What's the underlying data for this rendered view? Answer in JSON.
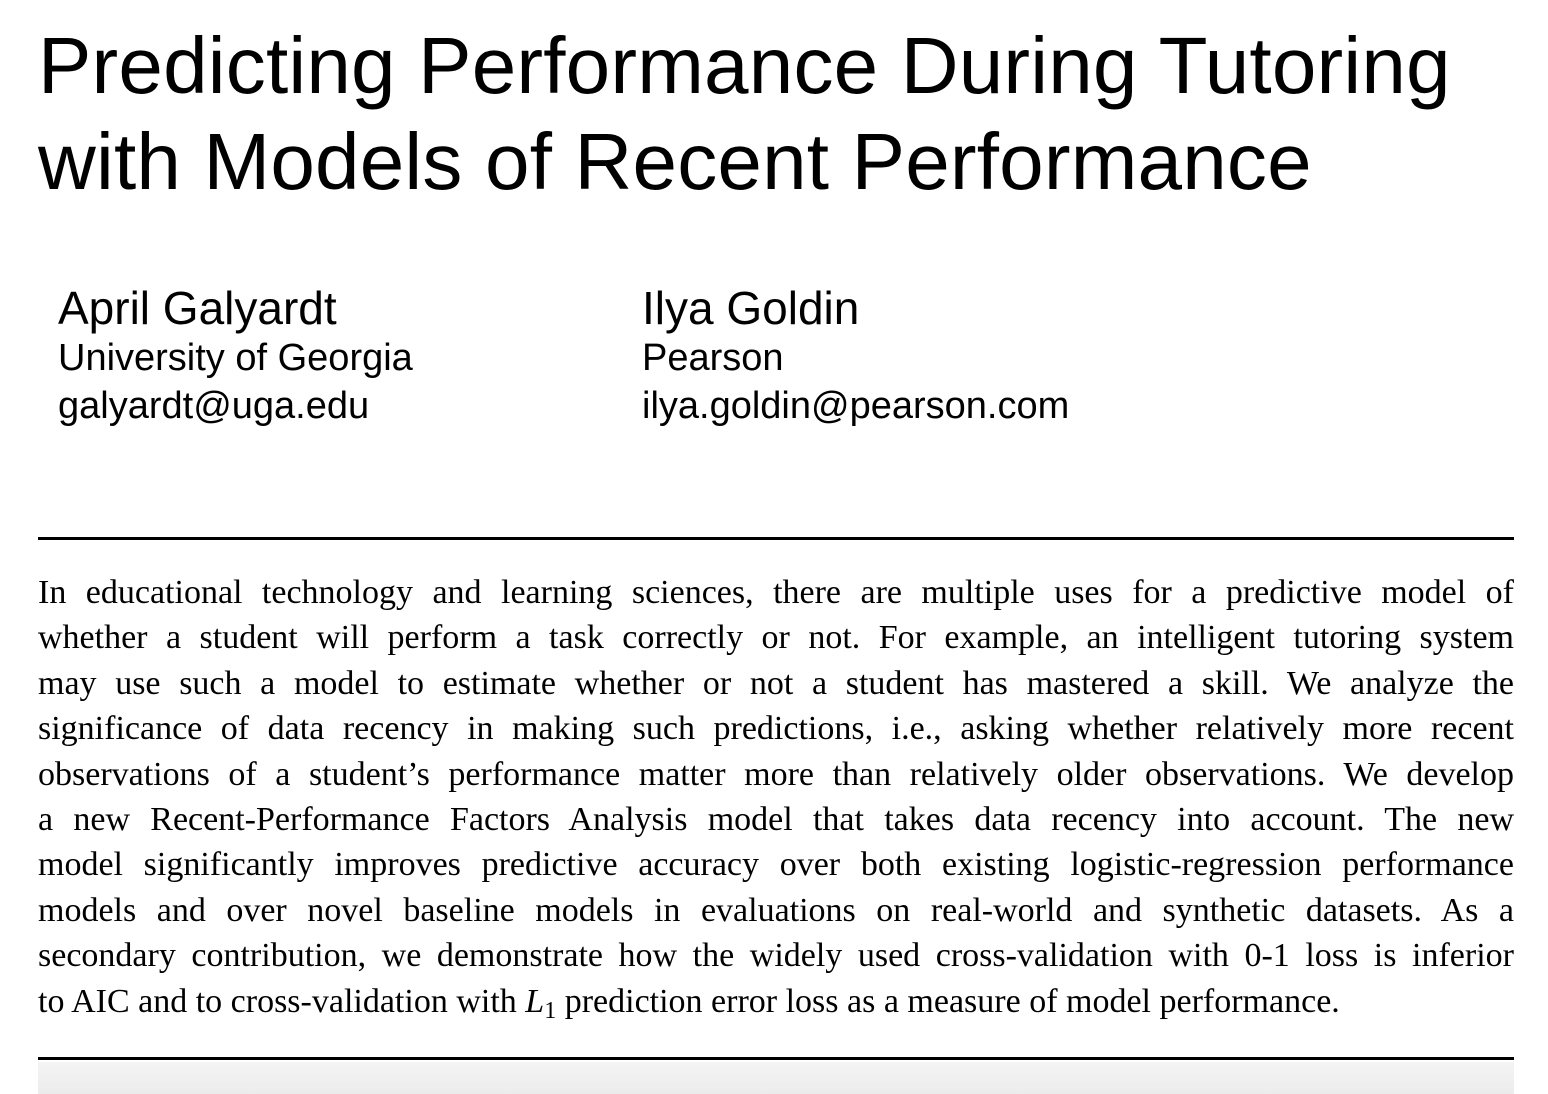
{
  "paper": {
    "title_lines": [
      "Predicting Performance During Tutoring",
      "with Models of Recent Performance"
    ],
    "authors": [
      {
        "name": "April Galyardt",
        "affiliation": "University of Georgia",
        "email": "galyardt@uga.edu"
      },
      {
        "name": "Ilya Goldin",
        "affiliation": "Pearson",
        "email": "ilya.goldin@pearson.com"
      }
    ],
    "abstract_lines": [
      "In educational technology and learning sciences, there are multiple uses for a predictive model of",
      "whether a student will perform a task correctly or not.  For example, an intelligent tutoring system",
      "may use such a model to estimate whether or not a student has mastered a skill.  We analyze the",
      "significance of data recency in making such predictions, i.e., asking whether relatively more recent",
      "observations of a student’s performance matter more than relatively older observations. We develop",
      "a new Recent-Performance Factors Analysis model that takes data recency into account.  The new",
      "model significantly improves predictive accuracy over both existing logistic-regression performance",
      "models and over novel baseline models in evaluations on real-world and synthetic datasets.  As a",
      "secondary contribution, we demonstrate how the widely used cross-validation with 0-1 loss is inferior"
    ],
    "abstract_last_line": {
      "before": "to AIC and to cross-validation with ",
      "math_symbol": "L",
      "math_subscript": "1",
      "after": " prediction error loss as a measure of model performance."
    }
  }
}
